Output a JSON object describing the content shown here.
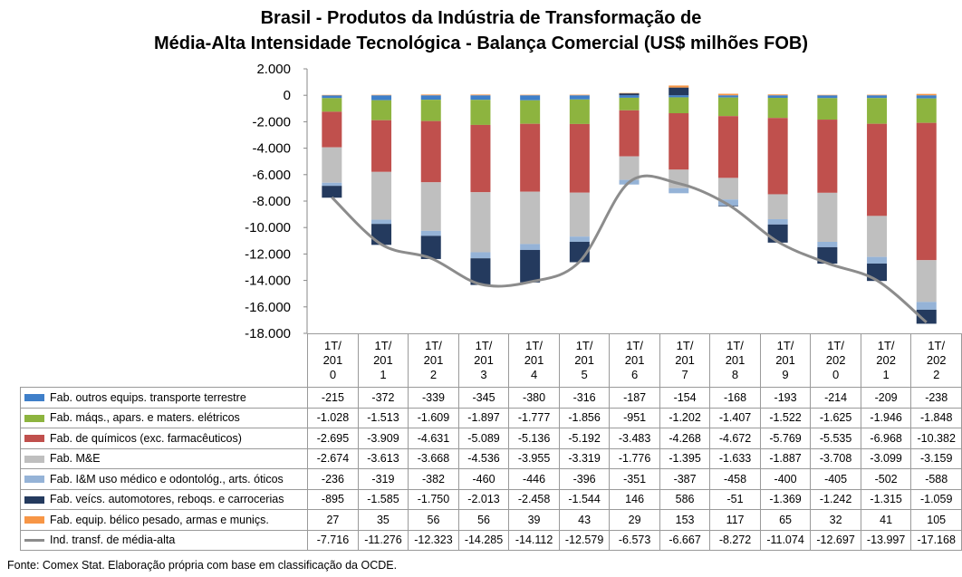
{
  "title_line1": "Brasil - Produtos da Indústria de Transformação de",
  "title_line2": "Média-Alta Intensidade Tecnológica - Balança Comercial (US$ milhões FOB)",
  "source": "Fonte:  Comex Stat. Elaboração própria com base em classificação da OCDE.",
  "chart_data": {
    "type": "bar",
    "stacked": true,
    "categories": [
      "1T/2010",
      "1T/2011",
      "1T/2012",
      "1T/2013",
      "1T/2014",
      "1T/2015",
      "1T/2016",
      "1T/2017",
      "1T/2018",
      "1T/2019",
      "1T/2020",
      "1T/2021",
      "1T/2022"
    ],
    "category_labels": [
      [
        "1T/",
        "201",
        "0"
      ],
      [
        "1T/",
        "201",
        "1"
      ],
      [
        "1T/",
        "201",
        "2"
      ],
      [
        "1T/",
        "201",
        "3"
      ],
      [
        "1T/",
        "201",
        "4"
      ],
      [
        "1T/",
        "201",
        "5"
      ],
      [
        "1T/",
        "201",
        "6"
      ],
      [
        "1T/",
        "201",
        "7"
      ],
      [
        "1T/",
        "201",
        "8"
      ],
      [
        "1T/",
        "201",
        "9"
      ],
      [
        "1T/",
        "202",
        "0"
      ],
      [
        "1T/",
        "202",
        "1"
      ],
      [
        "1T/",
        "202",
        "2"
      ]
    ],
    "ylim": [
      -18000,
      2000
    ],
    "yticks": [
      2000,
      0,
      -2000,
      -4000,
      -6000,
      -8000,
      -10000,
      -12000,
      -14000,
      -16000,
      -18000
    ],
    "ytick_labels": [
      "2.000",
      "0",
      "-2.000",
      "-4.000",
      "-6.000",
      "-8.000",
      "-10.000",
      "-12.000",
      "-14.000",
      "-16.000",
      "-18.000"
    ],
    "series": [
      {
        "name": "Fab. outros equips. transporte terrestre",
        "color": "#3f7fc9",
        "kind": "bar",
        "values": [
          -215,
          -372,
          -339,
          -345,
          -380,
          -316,
          -187,
          -154,
          -168,
          -193,
          -214,
          -209,
          -238
        ],
        "labels": [
          "-215",
          "-372",
          "-339",
          "-345",
          "-380",
          "-316",
          "-187",
          "-154",
          "-168",
          "-193",
          "-214",
          "-209",
          "-238"
        ]
      },
      {
        "name": "Fab. máqs., apars. e maters. elétricos",
        "color": "#8db43f",
        "kind": "bar",
        "values": [
          -1028,
          -1513,
          -1609,
          -1897,
          -1777,
          -1856,
          -951,
          -1202,
          -1407,
          -1522,
          -1625,
          -1946,
          -1848
        ],
        "labels": [
          "-1.028",
          "-1.513",
          "-1.609",
          "-1.897",
          "-1.777",
          "-1.856",
          "-951",
          "-1.202",
          "-1.407",
          "-1.522",
          "-1.625",
          "-1.946",
          "-1.848"
        ]
      },
      {
        "name": "Fab. de químicos (exc. farmacêuticos)",
        "color": "#c0504d",
        "kind": "bar",
        "values": [
          -2695,
          -3909,
          -4631,
          -5089,
          -5136,
          -5192,
          -3483,
          -4268,
          -4672,
          -5769,
          -5535,
          -6968,
          -10382
        ],
        "labels": [
          "-2.695",
          "-3.909",
          "-4.631",
          "-5.089",
          "-5.136",
          "-5.192",
          "-3.483",
          "-4.268",
          "-4.672",
          "-5.769",
          "-5.535",
          "-6.968",
          "-10.382"
        ]
      },
      {
        "name": "Fab. M&E",
        "color": "#bfbfbf",
        "kind": "bar",
        "values": [
          -2674,
          -3613,
          -3668,
          -4536,
          -3955,
          -3319,
          -1776,
          -1395,
          -1633,
          -1887,
          -3708,
          -3099,
          -3159
        ],
        "labels": [
          "-2.674",
          "-3.613",
          "-3.668",
          "-4.536",
          "-3.955",
          "-3.319",
          "-1.776",
          "-1.395",
          "-1.633",
          "-1.887",
          "-3.708",
          "-3.099",
          "-3.159"
        ]
      },
      {
        "name": "Fab. I&M uso médico e odontológ., arts. óticos",
        "color": "#95b3d7",
        "kind": "bar",
        "values": [
          -236,
          -319,
          -382,
          -460,
          -446,
          -396,
          -351,
          -387,
          -458,
          -400,
          -405,
          -502,
          -588
        ],
        "labels": [
          "-236",
          "-319",
          "-382",
          "-460",
          "-446",
          "-396",
          "-351",
          "-387",
          "-458",
          "-400",
          "-405",
          "-502",
          "-588"
        ]
      },
      {
        "name": "Fab. veícs. automotores, reboqs. e carrocerias",
        "color": "#243a5e",
        "kind": "bar",
        "values": [
          -895,
          -1585,
          -1750,
          -2013,
          -2458,
          -1544,
          146,
          586,
          -51,
          -1369,
          -1242,
          -1315,
          -1059
        ],
        "labels": [
          "-895",
          "-1.585",
          "-1.750",
          "-2.013",
          "-2.458",
          "-1.544",
          "146",
          "586",
          "-51",
          "-1.369",
          "-1.242",
          "-1.315",
          "-1.059"
        ]
      },
      {
        "name": "Fab. equip. bélico pesado, armas e muniçs.",
        "color": "#f79646",
        "kind": "bar",
        "values": [
          27,
          35,
          56,
          56,
          39,
          43,
          29,
          153,
          117,
          65,
          32,
          41,
          105
        ],
        "labels": [
          "27",
          "35",
          "56",
          "56",
          "39",
          "43",
          "29",
          "153",
          "117",
          "65",
          "32",
          "41",
          "105"
        ]
      },
      {
        "name": "Ind. transf. de média-alta",
        "color": "#8c8c8c",
        "kind": "line",
        "values": [
          -7716,
          -11276,
          -12323,
          -14285,
          -14112,
          -12579,
          -6573,
          -6667,
          -8272,
          -11074,
          -12697,
          -13997,
          -17168
        ],
        "labels": [
          "-7.716",
          "-11.276",
          "-12.323",
          "-14.285",
          "-14.112",
          "-12.579",
          "-6.573",
          "-6.667",
          "-8.272",
          "-11.074",
          "-12.697",
          "-13.997",
          "-17.168"
        ]
      }
    ]
  }
}
